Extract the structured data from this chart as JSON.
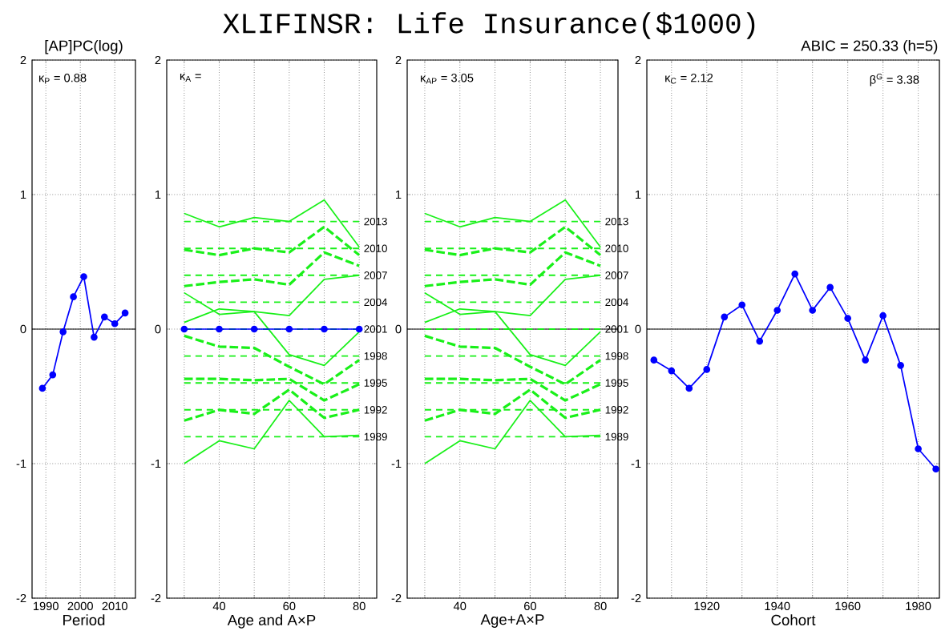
{
  "chart_data": [
    {
      "type": "line",
      "subtitle": "[AP]PC(log)",
      "xlabel": "Period",
      "x": [
        1989,
        1992,
        1995,
        1998,
        2001,
        2004,
        2007,
        2010,
        2013
      ],
      "series": [
        {
          "color": "#0000ff",
          "marker": "circle",
          "line_style": "solid",
          "values": [
            -0.44,
            -0.34,
            -0.02,
            0.24,
            0.39,
            -0.06,
            0.09,
            0.04,
            0.12
          ]
        }
      ],
      "xlim": [
        1986,
        2016
      ],
      "ylim": [
        -2,
        2
      ],
      "xticks": [
        1990,
        2000,
        2010
      ],
      "yticks": [
        -2,
        -1,
        0,
        1,
        2
      ],
      "grid": true,
      "ref_lines": [
        {
          "axis": "y",
          "value": 0,
          "color": "#000000",
          "line_style": "solid"
        }
      ],
      "annotations": [
        "κ$_{P}$ =  0.88"
      ]
    },
    {
      "type": "line",
      "xlabel": "Age and A×P",
      "x": [
        30,
        40,
        50,
        60,
        70,
        80
      ],
      "series": [
        {
          "name": "2013",
          "color": "#19f019",
          "marker": "none",
          "line_style": "dashed",
          "values": [
            0.8,
            0.8,
            0.8,
            0.8,
            0.8,
            0.8
          ]
        },
        {
          "name": "2010",
          "color": "#19f019",
          "marker": "none",
          "line_style": "dashed",
          "values": [
            0.6,
            0.6,
            0.6,
            0.6,
            0.6,
            0.6
          ]
        },
        {
          "name": "2007",
          "color": "#19f019",
          "marker": "none",
          "line_style": "dashed",
          "values": [
            0.4,
            0.4,
            0.4,
            0.4,
            0.4,
            0.4
          ]
        },
        {
          "name": "2004",
          "color": "#19f019",
          "marker": "none",
          "line_style": "dashed",
          "values": [
            0.2,
            0.2,
            0.2,
            0.2,
            0.2,
            0.2
          ]
        },
        {
          "name": "2001",
          "color": "#19f019",
          "marker": "none",
          "line_style": "dashed",
          "values": [
            0,
            0,
            0,
            0,
            0,
            0
          ]
        },
        {
          "name": "1998",
          "color": "#19f019",
          "marker": "none",
          "line_style": "dashed",
          "values": [
            -0.2,
            -0.2,
            -0.2,
            -0.2,
            -0.2,
            -0.2
          ]
        },
        {
          "name": "1995",
          "color": "#19f019",
          "marker": "none",
          "line_style": "dashed",
          "values": [
            -0.4,
            -0.4,
            -0.4,
            -0.4,
            -0.4,
            -0.4
          ]
        },
        {
          "name": "1992",
          "color": "#19f019",
          "marker": "none",
          "line_style": "dashed",
          "values": [
            -0.6,
            -0.6,
            -0.6,
            -0.6,
            -0.6,
            -0.6
          ]
        },
        {
          "name": "1989",
          "color": "#19f019",
          "marker": "none",
          "line_style": "dashed",
          "values": [
            -0.8,
            -0.8,
            -0.8,
            -0.8,
            -0.8,
            -0.8
          ]
        },
        {
          "color": "#19f019",
          "marker": "none",
          "line_style": "solid",
          "values": [
            0.86,
            0.76,
            0.83,
            0.8,
            0.96,
            0.61
          ]
        },
        {
          "color": "#19f019",
          "marker": "none",
          "line_style": "dashdot",
          "values": [
            0.59,
            0.55,
            0.6,
            0.57,
            0.76,
            0.55
          ]
        },
        {
          "color": "#19f019",
          "marker": "none",
          "line_style": "dashdot",
          "values": [
            0.32,
            0.35,
            0.37,
            0.33,
            0.57,
            0.47
          ]
        },
        {
          "color": "#19f019",
          "marker": "none",
          "line_style": "solid",
          "values": [
            0.27,
            0.11,
            0.13,
            -0.19,
            -0.27,
            -0.02
          ]
        },
        {
          "color": "#19f019",
          "marker": "none",
          "line_style": "solid",
          "values": [
            0.05,
            0.15,
            0.13,
            0.1,
            0.37,
            0.4
          ]
        },
        {
          "color": "#19f019",
          "marker": "none",
          "line_style": "dashdot",
          "values": [
            -0.05,
            -0.13,
            -0.14,
            -0.28,
            -0.41,
            -0.23
          ]
        },
        {
          "color": "#19f019",
          "marker": "none",
          "line_style": "dashdot",
          "values": [
            -0.37,
            -0.37,
            -0.38,
            -0.37,
            -0.53,
            -0.41
          ]
        },
        {
          "color": "#19f019",
          "marker": "none",
          "line_style": "dashdot",
          "values": [
            -0.68,
            -0.6,
            -0.63,
            -0.45,
            -0.66,
            -0.6
          ]
        },
        {
          "color": "#19f019",
          "marker": "none",
          "line_style": "solid",
          "values": [
            -1.0,
            -0.83,
            -0.89,
            -0.53,
            -0.8,
            -0.79
          ]
        },
        {
          "color": "#0000ff",
          "marker": "circle",
          "line_style": "solid",
          "values": [
            0,
            0,
            0,
            0,
            0,
            0
          ]
        }
      ],
      "xlim": [
        25,
        85
      ],
      "ylim": [
        -2,
        2
      ],
      "xticks": [
        {
          "value": 30,
          "label": null
        },
        40,
        {
          "value": 50,
          "label": null
        },
        60,
        {
          "value": 70,
          "label": null
        },
        80
      ],
      "yticks": [
        -2,
        -1,
        0,
        1,
        2
      ],
      "grid": true,
      "annotations": [
        "κ$_{A}$ ="
      ]
    },
    {
      "type": "line",
      "title": "XLIFINSR: Life Insurance($1000)",
      "xlabel": "Age+A×P",
      "x": [
        30,
        40,
        50,
        60,
        70,
        80
      ],
      "series": [
        {
          "name": "2013",
          "color": "#19f019",
          "marker": "none",
          "line_style": "dashed",
          "values": [
            0.8,
            0.8,
            0.8,
            0.8,
            0.8,
            0.8
          ]
        },
        {
          "name": "2010",
          "color": "#19f019",
          "marker": "none",
          "line_style": "dashed",
          "values": [
            0.6,
            0.6,
            0.6,
            0.6,
            0.6,
            0.6
          ]
        },
        {
          "name": "2007",
          "color": "#19f019",
          "marker": "none",
          "line_style": "dashed",
          "values": [
            0.4,
            0.4,
            0.4,
            0.4,
            0.4,
            0.4
          ]
        },
        {
          "name": "2004",
          "color": "#19f019",
          "marker": "none",
          "line_style": "dashed",
          "values": [
            0.2,
            0.2,
            0.2,
            0.2,
            0.2,
            0.2
          ]
        },
        {
          "name": "2001",
          "color": "#19f019",
          "marker": "none",
          "line_style": "dashed",
          "values": [
            0,
            0,
            0,
            0,
            0,
            0
          ]
        },
        {
          "name": "1998",
          "color": "#19f019",
          "marker": "none",
          "line_style": "dashed",
          "values": [
            -0.2,
            -0.2,
            -0.2,
            -0.2,
            -0.2,
            -0.2
          ]
        },
        {
          "name": "1995",
          "color": "#19f019",
          "marker": "none",
          "line_style": "dashed",
          "values": [
            -0.4,
            -0.4,
            -0.4,
            -0.4,
            -0.4,
            -0.4
          ]
        },
        {
          "name": "1992",
          "color": "#19f019",
          "marker": "none",
          "line_style": "dashed",
          "values": [
            -0.6,
            -0.6,
            -0.6,
            -0.6,
            -0.6,
            -0.6
          ]
        },
        {
          "name": "1989",
          "color": "#19f019",
          "marker": "none",
          "line_style": "dashed",
          "values": [
            -0.8,
            -0.8,
            -0.8,
            -0.8,
            -0.8,
            -0.8
          ]
        },
        {
          "color": "#19f019",
          "marker": "none",
          "line_style": "solid",
          "values": [
            0.86,
            0.76,
            0.83,
            0.8,
            0.96,
            0.61
          ]
        },
        {
          "color": "#19f019",
          "marker": "none",
          "line_style": "dashdot",
          "values": [
            0.59,
            0.55,
            0.6,
            0.57,
            0.76,
            0.55
          ]
        },
        {
          "color": "#19f019",
          "marker": "none",
          "line_style": "dashdot",
          "values": [
            0.32,
            0.35,
            0.37,
            0.33,
            0.57,
            0.47
          ]
        },
        {
          "color": "#19f019",
          "marker": "none",
          "line_style": "solid",
          "values": [
            0.27,
            0.11,
            0.13,
            -0.19,
            -0.27,
            -0.02
          ]
        },
        {
          "color": "#19f019",
          "marker": "none",
          "line_style": "solid",
          "values": [
            0.05,
            0.15,
            0.13,
            0.1,
            0.37,
            0.4
          ]
        },
        {
          "color": "#19f019",
          "marker": "none",
          "line_style": "dashdot",
          "values": [
            -0.05,
            -0.13,
            -0.14,
            -0.28,
            -0.41,
            -0.23
          ]
        },
        {
          "color": "#19f019",
          "marker": "none",
          "line_style": "dashdot",
          "values": [
            -0.37,
            -0.37,
            -0.38,
            -0.37,
            -0.53,
            -0.41
          ]
        },
        {
          "color": "#19f019",
          "marker": "none",
          "line_style": "dashdot",
          "values": [
            -0.68,
            -0.6,
            -0.63,
            -0.45,
            -0.66,
            -0.6
          ]
        },
        {
          "color": "#19f019",
          "marker": "none",
          "line_style": "solid",
          "values": [
            -1.0,
            -0.83,
            -0.89,
            -0.53,
            -0.8,
            -0.79
          ]
        }
      ],
      "xlim": [
        25,
        85
      ],
      "ylim": [
        -2,
        2
      ],
      "xticks": [
        {
          "value": 30,
          "label": null
        },
        40,
        {
          "value": 50,
          "label": null
        },
        60,
        {
          "value": 70,
          "label": null
        },
        80
      ],
      "yticks": [
        -2,
        -1,
        0,
        1,
        2
      ],
      "grid": true,
      "ref_lines": [
        {
          "axis": "y",
          "value": 0,
          "color": "#000000",
          "line_style": "solid"
        }
      ],
      "annotations": [
        "κ$_{AP}$ =  3.05"
      ]
    },
    {
      "type": "line",
      "title": "ABIC = 250.33 (h=5)",
      "xlabel": "Cohort",
      "x": [
        1905,
        1910,
        1915,
        1920,
        1925,
        1930,
        1935,
        1940,
        1945,
        1950,
        1955,
        1960,
        1965,
        1970,
        1975,
        1980,
        1985
      ],
      "series": [
        {
          "color": "#0000ff",
          "marker": "circle",
          "line_style": "solid",
          "values": [
            -0.23,
            -0.31,
            -0.44,
            -0.3,
            0.09,
            0.18,
            -0.09,
            0.14,
            0.41,
            0.14,
            0.31,
            0.08,
            -0.23,
            0.1,
            -0.27,
            -0.89,
            -1.04
          ]
        }
      ],
      "xlim": [
        1903,
        1986
      ],
      "ylim": [
        -2,
        2
      ],
      "xticks": [
        {
          "value": 1910,
          "label": null
        },
        1920,
        {
          "value": 1930,
          "label": null
        },
        1940,
        {
          "value": 1950,
          "label": null
        },
        1960,
        {
          "value": 1970,
          "label": null
        },
        1980
      ],
      "yticks": [
        -2,
        -1,
        0,
        1,
        2
      ],
      "grid": true,
      "ref_lines": [
        {
          "axis": "y",
          "value": 0,
          "color": "#000000",
          "line_style": "solid"
        }
      ],
      "annotations": [
        "κ$_{C}$ =  2.12",
        "β$^{G}$ =  3.38"
      ]
    }
  ]
}
